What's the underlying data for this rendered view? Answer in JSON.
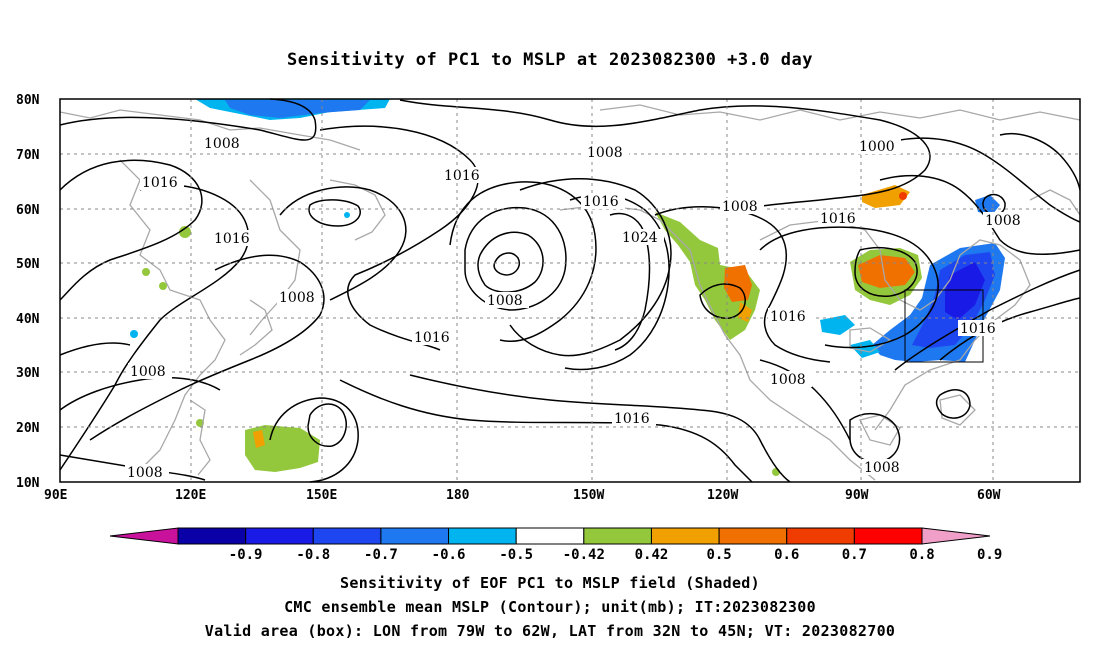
{
  "title": "Sensitivity of PC1 to MSLP at 2023082300 +3.0 day",
  "map": {
    "lat_ticks": [
      "80N",
      "70N",
      "60N",
      "50N",
      "40N",
      "30N",
      "20N",
      "10N"
    ],
    "lon_ticks": [
      "90E",
      "120E",
      "150E",
      "180",
      "150W",
      "120W",
      "90W",
      "60W"
    ],
    "grid": "dashed",
    "contour_color": "#000000",
    "coastline_color": "#a8a8a8",
    "contour_labels": [
      "1008",
      "1016",
      "1016",
      "1008",
      "1008",
      "1016",
      "1008",
      "1016",
      "1024",
      "1008",
      "1000",
      "1016",
      "1016",
      "1016",
      "1008",
      "1008",
      "1016",
      "1008",
      "1008",
      "1008",
      "1016"
    ]
  },
  "colorbar": {
    "tick_labels": [
      "-0.9",
      "-0.8",
      "-0.7",
      "-0.6",
      "-0.5",
      "-0.42",
      "0.42",
      "0.5",
      "0.6",
      "0.7",
      "0.8",
      "0.9"
    ],
    "colors": [
      "#c8129c",
      "#0a00a8",
      "#1a1ae6",
      "#1e46f0",
      "#1e78f0",
      "#00b4f0",
      "#ffffff",
      "#94c83c",
      "#f0a000",
      "#f07000",
      "#f03c00",
      "#ff0000",
      "#f0a0c8"
    ]
  },
  "footer": {
    "line1": "Sensitivity of EOF PC1 to MSLP field (Shaded)",
    "line2": "CMC ensemble mean MSLP (Contour); unit(mb); IT:2023082300",
    "line3": "Valid area (box): LON from 79W to 62W, LAT from 32N to 45N; VT: 2023082700"
  }
}
